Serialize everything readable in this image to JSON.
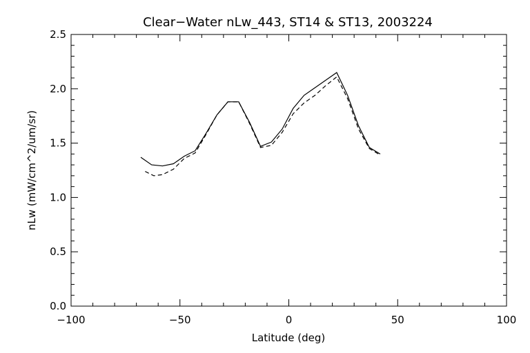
{
  "chart_data": {
    "type": "line",
    "title": "Clear−Water nLw_443, ST14 & ST13, 2003224",
    "xlabel": "Latitude (deg)",
    "ylabel": "nLw (mW/cm^2/um/sr)",
    "xlim": [
      -100,
      100
    ],
    "ylim": [
      0.0,
      2.5
    ],
    "x_ticks": [
      "−100",
      "−50",
      "0",
      "50",
      "100"
    ],
    "y_ticks": [
      "0.0",
      "0.5",
      "1.0",
      "1.5",
      "2.0",
      "2.5"
    ],
    "grid": false,
    "series": [
      {
        "style": "solid",
        "x": [
          -68,
          -63,
          -58,
          -53,
          -48,
          -43,
          -38,
          -33,
          -28,
          -23,
          -18,
          -13,
          -8,
          -3,
          2,
          7,
          12,
          17,
          22,
          27,
          32,
          37,
          42
        ],
        "y": [
          1.37,
          1.3,
          1.29,
          1.31,
          1.38,
          1.43,
          1.59,
          1.76,
          1.88,
          1.88,
          1.69,
          1.47,
          1.51,
          1.63,
          1.82,
          1.94,
          2.01,
          2.08,
          2.15,
          1.94,
          1.66,
          1.46,
          1.4
        ]
      },
      {
        "style": "dashed",
        "x": [
          -66,
          -62,
          -58,
          -53,
          -48,
          -43,
          -38,
          -33,
          -28,
          -23,
          -18,
          -13,
          -8,
          -3,
          2,
          7,
          12,
          17,
          22,
          27,
          32,
          37,
          42
        ],
        "y": [
          1.24,
          1.2,
          1.21,
          1.26,
          1.36,
          1.41,
          1.58,
          1.76,
          1.88,
          1.88,
          1.68,
          1.46,
          1.48,
          1.6,
          1.77,
          1.87,
          1.94,
          2.03,
          2.11,
          1.91,
          1.63,
          1.45,
          1.39
        ]
      }
    ]
  }
}
